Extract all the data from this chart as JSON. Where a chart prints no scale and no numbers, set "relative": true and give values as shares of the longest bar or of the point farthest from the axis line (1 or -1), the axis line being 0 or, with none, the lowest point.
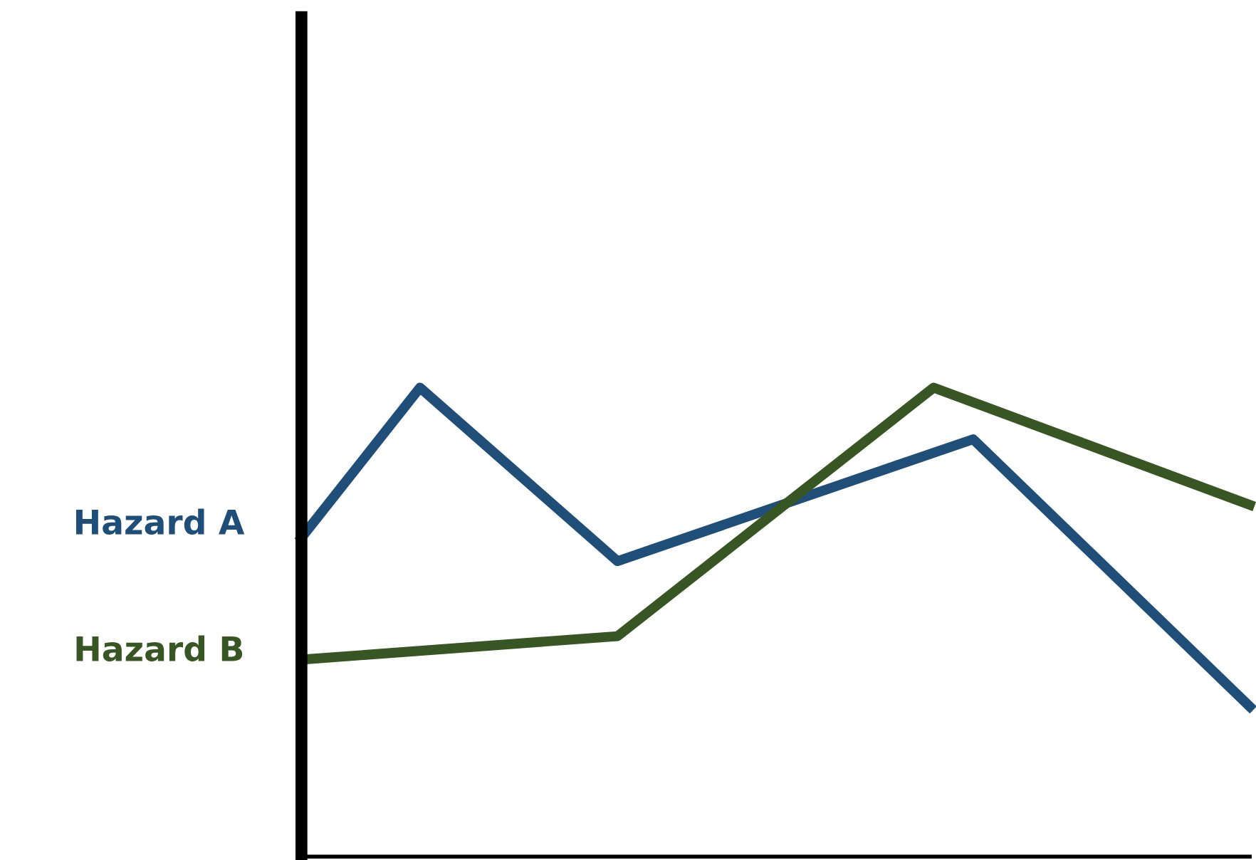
{
  "chart_data": {
    "type": "line",
    "relative": true,
    "legend": false,
    "marker": "none",
    "line_style": "solid",
    "categories": [
      null,
      null,
      null,
      null,
      null,
      null,
      null,
      null,
      null,
      null,
      null,
      null,
      null,
      null,
      null,
      null,
      null,
      null,
      null,
      null,
      null,
      null,
      null,
      null,
      null
    ],
    "series": [
      {
        "name": "Hazard A",
        "color": "#1f4e79",
        "values": [
          0.68,
          null,
          null,
          1.0,
          null,
          null,
          null,
          null,
          0.63,
          null,
          null,
          null,
          null,
          null,
          null,
          null,
          null,
          0.89,
          null,
          null,
          null,
          null,
          null,
          null,
          0.32
        ]
      },
      {
        "name": "Hazard B",
        "color": "#375623",
        "values": [
          0.42,
          null,
          null,
          null,
          null,
          null,
          null,
          null,
          0.47,
          null,
          null,
          null,
          null,
          null,
          null,
          null,
          1.0,
          null,
          null,
          null,
          null,
          null,
          null,
          null,
          0.75
        ]
      }
    ]
  }
}
